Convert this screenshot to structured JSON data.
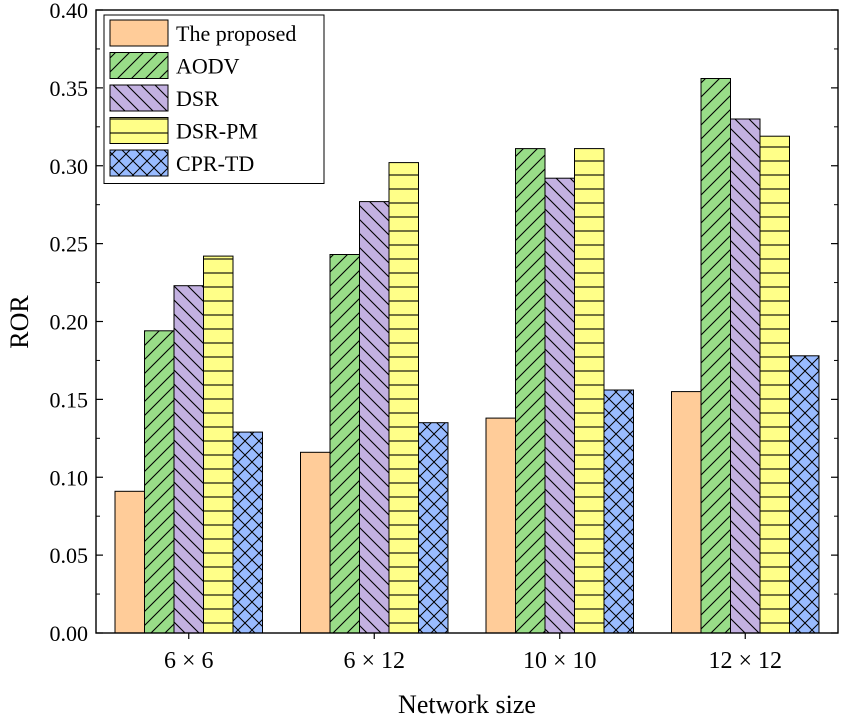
{
  "chart_data": {
    "type": "bar",
    "title": "",
    "xlabel": "Network size",
    "ylabel": "ROR",
    "ylim": [
      0.0,
      0.4
    ],
    "yticks": [
      "0.00",
      "0.05",
      "0.10",
      "0.15",
      "0.20",
      "0.25",
      "0.30",
      "0.35",
      "0.40"
    ],
    "categories": [
      "6 × 6",
      "6 × 12",
      "10 × 10",
      "12 × 12"
    ],
    "legend_position": "top-left",
    "grid": false,
    "series": [
      {
        "name": "The proposed",
        "color": "#FFCC99",
        "pattern": "none",
        "values": [
          0.091,
          0.116,
          0.138,
          0.155
        ]
      },
      {
        "name": "AODV",
        "color": "#99DD88",
        "pattern": "diagonal-forward",
        "values": [
          0.194,
          0.243,
          0.311,
          0.356
        ]
      },
      {
        "name": "DSR",
        "color": "#C3B1E1",
        "pattern": "diagonal-back",
        "values": [
          0.223,
          0.277,
          0.292,
          0.33
        ]
      },
      {
        "name": "DSR-PM",
        "color": "#FFFF88",
        "pattern": "horizontal",
        "values": [
          0.242,
          0.302,
          0.311,
          0.319
        ]
      },
      {
        "name": "CPR-TD",
        "color": "#99BBFF",
        "pattern": "crosshatch",
        "values": [
          0.129,
          0.135,
          0.156,
          0.178
        ]
      }
    ]
  }
}
